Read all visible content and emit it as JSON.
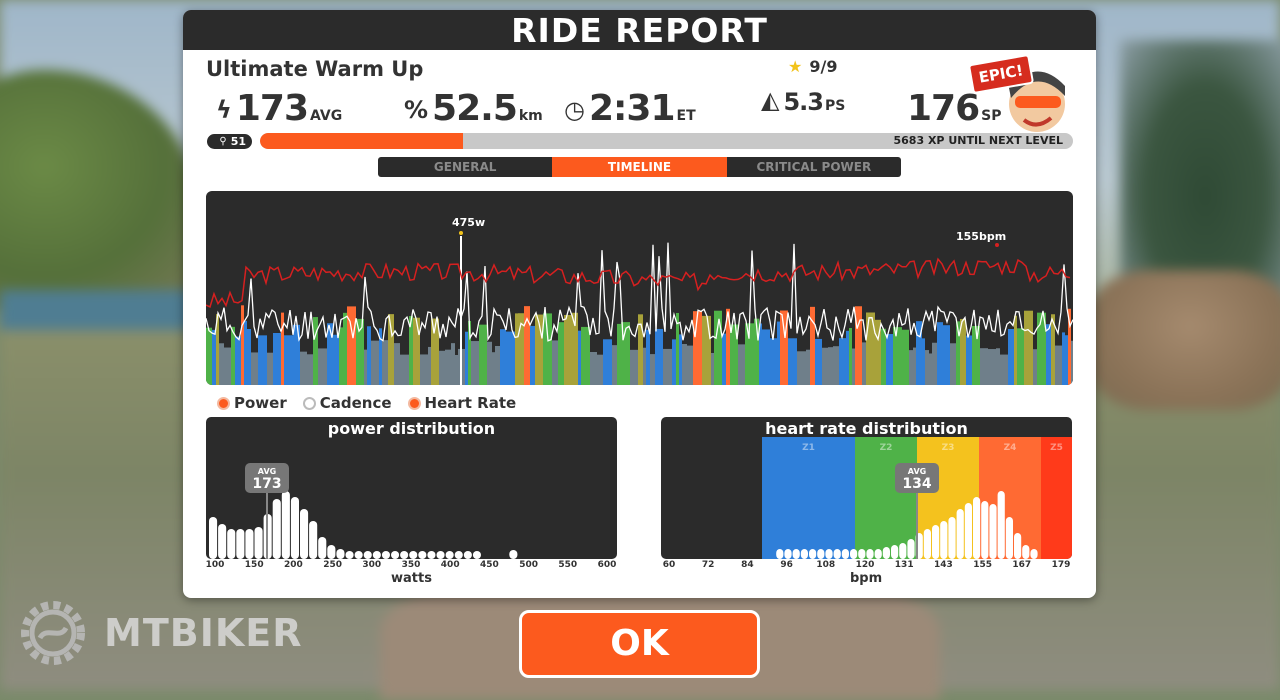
{
  "panel": {
    "title": "RIDE REPORT",
    "ride_name": "Ultimate Warm Up",
    "stars": "9/9"
  },
  "stats": {
    "power": {
      "value": "173",
      "unit": "AVG",
      "icon": "lightning-icon"
    },
    "distance": {
      "value": "52.5",
      "unit": "km",
      "icon": "distance-icon"
    },
    "time": {
      "value": "2:31",
      "unit": "ET",
      "icon": "clock-icon"
    },
    "ps": {
      "value": "5.3",
      "unit": "PS",
      "icon": "pizza-icon"
    },
    "sp": {
      "value": "176",
      "unit": "SP"
    }
  },
  "badge": {
    "label": "EPIC!"
  },
  "level": {
    "value": "51",
    "xp_text": "5683 XP UNTIL NEXT LEVEL",
    "progress": 0.25
  },
  "tabs": [
    {
      "label": "GENERAL",
      "active": false
    },
    {
      "label": "TIMELINE",
      "active": true
    },
    {
      "label": "CRITICAL POWER",
      "active": false
    }
  ],
  "timeline": {
    "peak_power_label": "475w",
    "peak_hr_label": "155bpm"
  },
  "legend": [
    {
      "label": "Power",
      "on": true
    },
    {
      "label": "Cadence",
      "on": false
    },
    {
      "label": "Heart Rate",
      "on": true
    }
  ],
  "power_distribution": {
    "title": "power distribution",
    "avg_label": "AVG",
    "avg_value": "173",
    "xlabel": "watts",
    "ticks": [
      "100",
      "150",
      "200",
      "250",
      "300",
      "350",
      "400",
      "450",
      "500",
      "550",
      "600"
    ]
  },
  "hr_distribution": {
    "title": "heart rate distribution",
    "avg_label": "AVG",
    "avg_value": "134",
    "xlabel": "bpm",
    "ticks": [
      "60",
      "72",
      "84",
      "96",
      "108",
      "120",
      "131",
      "143",
      "155",
      "167",
      "179"
    ],
    "zones": [
      "Z1",
      "Z2",
      "Z3",
      "Z4",
      "Z5"
    ]
  },
  "ok_label": "OK",
  "watermark": "MTBIKER",
  "colors": {
    "accent": "#fc5a1e",
    "dark": "#2b2b2b",
    "zone_blue": "#2f7fd9",
    "zone_green": "#4fb248",
    "zone_yellow": "#f4c21e",
    "zone_orange": "#ff6a33",
    "zone_red": "#ff3a1a",
    "hr_line": "#d62020"
  }
}
